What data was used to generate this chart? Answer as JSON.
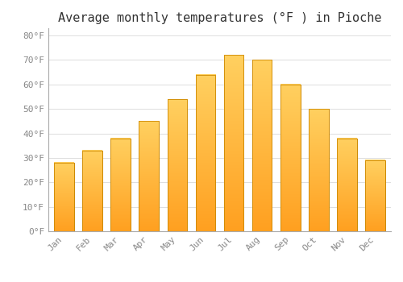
{
  "title": "Average monthly temperatures (°F ) in Pioche",
  "months": [
    "Jan",
    "Feb",
    "Mar",
    "Apr",
    "May",
    "Jun",
    "Jul",
    "Aug",
    "Sep",
    "Oct",
    "Nov",
    "Dec"
  ],
  "values": [
    28,
    33,
    38,
    45,
    54,
    64,
    72,
    70,
    60,
    50,
    38,
    29
  ],
  "bar_color_top": "#FFD060",
  "bar_color_bottom": "#FFA020",
  "bar_edge_color": "#CC8800",
  "background_color": "#FFFFFF",
  "plot_bg_color": "#FFFFFF",
  "grid_color": "#DDDDDD",
  "ylim": [
    0,
    83
  ],
  "yticks": [
    0,
    10,
    20,
    30,
    40,
    50,
    60,
    70,
    80
  ],
  "ytick_labels": [
    "0°F",
    "10°F",
    "20°F",
    "30°F",
    "40°F",
    "50°F",
    "60°F",
    "70°F",
    "80°F"
  ],
  "title_fontsize": 11,
  "tick_fontsize": 8,
  "bar_width": 0.7
}
